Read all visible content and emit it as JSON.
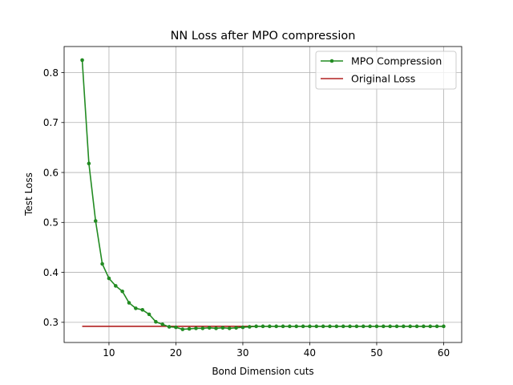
{
  "chart_data": {
    "type": "line",
    "title": "NN Loss after MPO compression",
    "xlabel": "Bond Dimension cuts",
    "ylabel": "Test Loss",
    "xlim": [
      3.3,
      62.7
    ],
    "ylim": [
      0.2596,
      0.8522
    ],
    "x_ticks": [
      10,
      20,
      30,
      40,
      50,
      60
    ],
    "y_ticks": [
      0.3,
      0.4,
      0.5,
      0.6,
      0.7,
      0.8
    ],
    "x_tick_labels": [
      "10",
      "20",
      "30",
      "40",
      "50",
      "60"
    ],
    "y_tick_labels": [
      "0.3",
      "0.4",
      "0.5",
      "0.6",
      "0.7",
      "0.8"
    ],
    "grid": true,
    "legend_position": "top-right",
    "series": [
      {
        "name": "MPO Compression",
        "color": "#228b22",
        "marker": "circle",
        "x": [
          6,
          7,
          8,
          9,
          10,
          11,
          12,
          13,
          14,
          15,
          16,
          17,
          18,
          19,
          20,
          21,
          22,
          23,
          24,
          25,
          26,
          27,
          28,
          29,
          30,
          31,
          32,
          33,
          34,
          35,
          36,
          37,
          38,
          39,
          40,
          41,
          42,
          43,
          44,
          45,
          46,
          47,
          48,
          49,
          50,
          51,
          52,
          53,
          54,
          55,
          56,
          57,
          58,
          59,
          60
        ],
        "y": [
          0.825,
          0.618,
          0.503,
          0.417,
          0.388,
          0.373,
          0.362,
          0.339,
          0.328,
          0.325,
          0.316,
          0.301,
          0.296,
          0.291,
          0.29,
          0.286,
          0.287,
          0.288,
          0.288,
          0.289,
          0.288,
          0.289,
          0.288,
          0.289,
          0.29,
          0.291,
          0.292,
          0.292,
          0.292,
          0.292,
          0.292,
          0.292,
          0.292,
          0.292,
          0.292,
          0.292,
          0.292,
          0.292,
          0.292,
          0.292,
          0.292,
          0.292,
          0.292,
          0.292,
          0.292,
          0.292,
          0.292,
          0.292,
          0.292,
          0.292,
          0.292,
          0.292,
          0.292,
          0.292,
          0.292
        ]
      },
      {
        "name": "Original Loss",
        "color": "#b22222",
        "marker": "none",
        "x": [
          6,
          60
        ],
        "y": [
          0.292,
          0.292
        ]
      }
    ]
  }
}
